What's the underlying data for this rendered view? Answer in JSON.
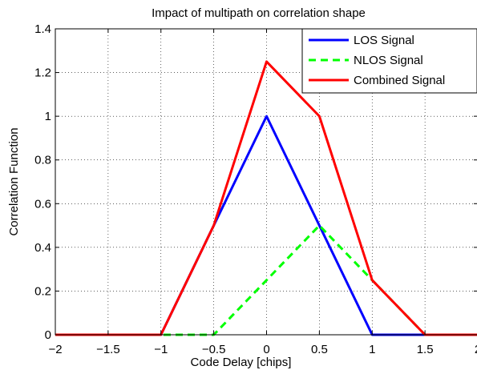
{
  "chart_data": {
    "type": "line",
    "title": "Impact of multipath on correlation shape",
    "xlabel": "Code Delay [chips]",
    "ylabel": "Correlation Function",
    "xlim": [
      -2,
      2
    ],
    "ylim": [
      0,
      1.4
    ],
    "xticks": [
      -2,
      -1.5,
      -1,
      -0.5,
      0,
      0.5,
      1,
      1.5,
      2
    ],
    "xtick_labels": [
      "−2",
      "−1.5",
      "−1",
      "−0.5",
      "0",
      "0.5",
      "1",
      "1.5",
      "2"
    ],
    "yticks": [
      0,
      0.2,
      0.4,
      0.6,
      0.8,
      1,
      1.2,
      1.4
    ],
    "ytick_labels": [
      "0",
      "0.2",
      "0.4",
      "0.6",
      "0.8",
      "1",
      "1.2",
      "1.4"
    ],
    "grid": true,
    "legend": "top-right",
    "series": [
      {
        "name": "LOS Signal",
        "color": "#0000ff",
        "style": "solid",
        "x": [
          -2,
          -1,
          0,
          1,
          2
        ],
        "y": [
          0,
          0,
          1,
          0,
          0
        ]
      },
      {
        "name": "NLOS Signal",
        "color": "#00ff00",
        "style": "dashed",
        "x": [
          -2,
          -0.5,
          0.5,
          1.5,
          2
        ],
        "y": [
          0,
          0,
          0.5,
          0,
          0
        ]
      },
      {
        "name": "Combined Signal",
        "color": "#ff0000",
        "style": "solid",
        "x": [
          -2,
          -1,
          -0.5,
          0,
          0.5,
          1,
          1.5,
          2
        ],
        "y": [
          0,
          0,
          0.5,
          1.25,
          1.0,
          0.25,
          0,
          0
        ]
      }
    ]
  }
}
